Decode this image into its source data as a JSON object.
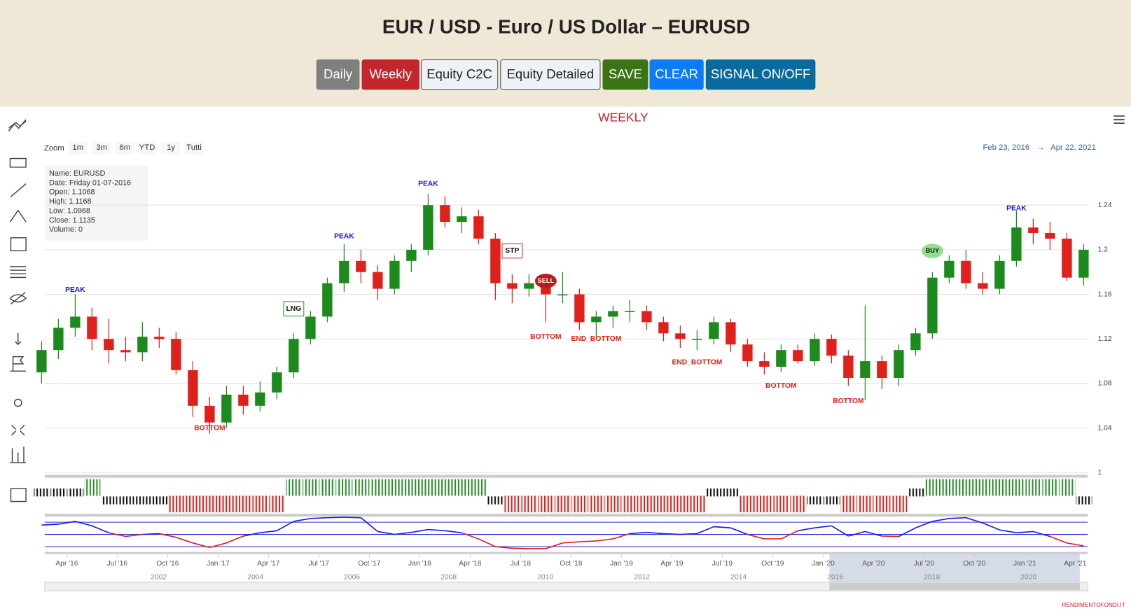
{
  "header": {
    "title": "EUR / USD - Euro / US Dollar – EURUSD",
    "buttons": [
      {
        "label": "Daily",
        "color": "#7f7f7f",
        "text_color": "#ffffff"
      },
      {
        "label": "Weekly",
        "color": "#c3262c",
        "text_color": "#ffffff"
      },
      {
        "label": "Equity C2C",
        "color": "#eef1f5",
        "text_color": "#222222"
      },
      {
        "label": "Equity Detailed",
        "color": "#eef1f5",
        "text_color": "#222222"
      },
      {
        "label": "SAVE",
        "color": "#3a7414",
        "text_color": "#ffffff"
      },
      {
        "label": "CLEAR",
        "color": "#0b7cf6",
        "text_color": "#ffffff"
      },
      {
        "label": "SIGNAL ON/OFF",
        "color": "#096a9d",
        "text_color": "#ffffff"
      }
    ]
  },
  "toolbar": {
    "zoom_label": "Zoom",
    "zoom_buttons": [
      "1m",
      "3m",
      "6m",
      "YTD",
      "1y",
      "Tutti"
    ],
    "range_from": "Feb 23, 2016",
    "range_arrow": "→",
    "range_to": "Apr 22, 2021"
  },
  "info_box": [
    "Name: EURUSD",
    "Date: Friday 01-07-2016",
    "Open: 1.1068",
    "High: 1.1168",
    "Low: 1.0968",
    "Close: 1.1135",
    "Volume: 0"
  ],
  "footer": "RENDIMENTOFONDI.IT",
  "chart_data": {
    "type": "candlestick",
    "title": "WEEKLY",
    "up_color": "#1d8a1d",
    "down_color": "#e0201b",
    "xlim": [
      "2016-02",
      "2021-05"
    ],
    "ylim": [
      1,
      1.278
    ],
    "yticks": [
      1,
      1.04,
      1.08,
      1.12,
      1.16,
      1.2,
      1.24
    ],
    "grid": true,
    "x": [
      "2016-02",
      "2016-03",
      "2016-04",
      "2016-05",
      "2016-06",
      "2016-07",
      "2016-08",
      "2016-09",
      "2016-10",
      "2016-11",
      "2016-12",
      "2017-01",
      "2017-02",
      "2017-03",
      "2017-04",
      "2017-05",
      "2017-06",
      "2017-07",
      "2017-08",
      "2017-09",
      "2017-10",
      "2017-11",
      "2017-12",
      "2018-01",
      "2018-02",
      "2018-03",
      "2018-04",
      "2018-05",
      "2018-06",
      "2018-07",
      "2018-08",
      "2018-09",
      "2018-10",
      "2018-11",
      "2018-12",
      "2019-01",
      "2019-02",
      "2019-03",
      "2019-04",
      "2019-05",
      "2019-06",
      "2019-07",
      "2019-08",
      "2019-09",
      "2019-10",
      "2019-11",
      "2019-12",
      "2020-01",
      "2020-02",
      "2020-03",
      "2020-04",
      "2020-05",
      "2020-06",
      "2020-07",
      "2020-08",
      "2020-09",
      "2020-10",
      "2020-11",
      "2020-12",
      "2021-01",
      "2021-02",
      "2021-03",
      "2021-04"
    ],
    "candles": [
      [
        1.09,
        1.118,
        1.08,
        1.11
      ],
      [
        1.11,
        1.138,
        1.102,
        1.13
      ],
      [
        1.13,
        1.16,
        1.122,
        1.14
      ],
      [
        1.14,
        1.148,
        1.11,
        1.12
      ],
      [
        1.12,
        1.138,
        1.098,
        1.11
      ],
      [
        1.11,
        1.122,
        1.1,
        1.108
      ],
      [
        1.108,
        1.135,
        1.1,
        1.122
      ],
      [
        1.122,
        1.13,
        1.112,
        1.12
      ],
      [
        1.12,
        1.126,
        1.088,
        1.092
      ],
      [
        1.092,
        1.1,
        1.05,
        1.06
      ],
      [
        1.06,
        1.068,
        1.035,
        1.045
      ],
      [
        1.045,
        1.078,
        1.04,
        1.07
      ],
      [
        1.07,
        1.078,
        1.052,
        1.06
      ],
      [
        1.06,
        1.082,
        1.055,
        1.072
      ],
      [
        1.072,
        1.095,
        1.066,
        1.09
      ],
      [
        1.09,
        1.125,
        1.085,
        1.12
      ],
      [
        1.12,
        1.145,
        1.115,
        1.14
      ],
      [
        1.14,
        1.175,
        1.135,
        1.17
      ],
      [
        1.17,
        1.205,
        1.162,
        1.19
      ],
      [
        1.19,
        1.2,
        1.17,
        1.18
      ],
      [
        1.18,
        1.186,
        1.155,
        1.165
      ],
      [
        1.165,
        1.195,
        1.16,
        1.19
      ],
      [
        1.19,
        1.205,
        1.18,
        1.2
      ],
      [
        1.2,
        1.25,
        1.195,
        1.24
      ],
      [
        1.24,
        1.248,
        1.22,
        1.225
      ],
      [
        1.225,
        1.238,
        1.215,
        1.23
      ],
      [
        1.23,
        1.236,
        1.205,
        1.21
      ],
      [
        1.21,
        1.215,
        1.155,
        1.17
      ],
      [
        1.17,
        1.178,
        1.152,
        1.165
      ],
      [
        1.165,
        1.178,
        1.158,
        1.17
      ],
      [
        1.17,
        1.175,
        1.135,
        1.16
      ],
      [
        1.16,
        1.18,
        1.152,
        1.16
      ],
      [
        1.16,
        1.165,
        1.128,
        1.135
      ],
      [
        1.135,
        1.145,
        1.122,
        1.14
      ],
      [
        1.14,
        1.15,
        1.13,
        1.145
      ],
      [
        1.145,
        1.155,
        1.135,
        1.145
      ],
      [
        1.145,
        1.15,
        1.128,
        1.135
      ],
      [
        1.135,
        1.14,
        1.118,
        1.125
      ],
      [
        1.125,
        1.132,
        1.112,
        1.12
      ],
      [
        1.12,
        1.128,
        1.11,
        1.12
      ],
      [
        1.12,
        1.14,
        1.115,
        1.135
      ],
      [
        1.135,
        1.138,
        1.108,
        1.115
      ],
      [
        1.115,
        1.12,
        1.095,
        1.1
      ],
      [
        1.1,
        1.108,
        1.088,
        1.095
      ],
      [
        1.095,
        1.115,
        1.09,
        1.11
      ],
      [
        1.11,
        1.115,
        1.098,
        1.1
      ],
      [
        1.1,
        1.125,
        1.096,
        1.12
      ],
      [
        1.12,
        1.124,
        1.098,
        1.105
      ],
      [
        1.105,
        1.11,
        1.078,
        1.085
      ],
      [
        1.085,
        1.15,
        1.065,
        1.1
      ],
      [
        1.1,
        1.105,
        1.075,
        1.085
      ],
      [
        1.085,
        1.115,
        1.078,
        1.11
      ],
      [
        1.11,
        1.13,
        1.105,
        1.125
      ],
      [
        1.125,
        1.18,
        1.12,
        1.175
      ],
      [
        1.175,
        1.195,
        1.17,
        1.19
      ],
      [
        1.19,
        1.2,
        1.165,
        1.17
      ],
      [
        1.17,
        1.18,
        1.16,
        1.165
      ],
      [
        1.165,
        1.195,
        1.16,
        1.19
      ],
      [
        1.19,
        1.235,
        1.185,
        1.22
      ],
      [
        1.22,
        1.228,
        1.205,
        1.215
      ],
      [
        1.215,
        1.225,
        1.2,
        1.21
      ],
      [
        1.21,
        1.215,
        1.172,
        1.175
      ],
      [
        1.175,
        1.205,
        1.168,
        1.2
      ]
    ],
    "xticks": [
      {
        "value": "2016-04",
        "label": "Apr '16"
      },
      {
        "value": "2016-07",
        "label": "Jul '16"
      },
      {
        "value": "2016-10",
        "label": "Oct '16"
      },
      {
        "value": "2017-01",
        "label": "Jan '17"
      },
      {
        "value": "2017-04",
        "label": "Apr '17"
      },
      {
        "value": "2017-07",
        "label": "Jul '17"
      },
      {
        "value": "2017-10",
        "label": "Oct '17"
      },
      {
        "value": "2018-01",
        "label": "Jan '18"
      },
      {
        "value": "2018-04",
        "label": "Apr '18"
      },
      {
        "value": "2018-07",
        "label": "Jul '18"
      },
      {
        "value": "2018-10",
        "label": "Oct '18"
      },
      {
        "value": "2019-01",
        "label": "Jan '19"
      },
      {
        "value": "2019-04",
        "label": "Apr '19"
      },
      {
        "value": "2019-07",
        "label": "Jul '19"
      },
      {
        "value": "2019-10",
        "label": "Oct '19"
      },
      {
        "value": "2020-01",
        "label": "Jan '20"
      },
      {
        "value": "2020-04",
        "label": "Apr '20"
      },
      {
        "value": "2020-07",
        "label": "Jul '20"
      },
      {
        "value": "2020-10",
        "label": "Oct '20"
      },
      {
        "value": "2021-01",
        "label": "Jan '21"
      },
      {
        "value": "2021-04",
        "label": "Apr '21"
      }
    ],
    "annotations": [
      {
        "label": "PEAK",
        "style": "peak",
        "x": "2016-04",
        "y": 1.164
      },
      {
        "label": "PEAK",
        "style": "peak",
        "x": "2017-08",
        "y": 1.212
      },
      {
        "label": "PEAK",
        "style": "peak",
        "x": "2018-01",
        "y": 1.259
      },
      {
        "label": "PEAK",
        "style": "peak",
        "x": "2020-12",
        "y": 1.237
      },
      {
        "label": "BOTTOM",
        "style": "bottom",
        "x": "2016-12",
        "y": 1.04
      },
      {
        "label": "BOTTOM",
        "style": "bottom",
        "x": "2018-08",
        "y": 1.122
      },
      {
        "label": "END_BOTTOM",
        "style": "bottom",
        "x": "2018-11",
        "y": 1.12
      },
      {
        "label": "END_BOTTOM",
        "style": "bottom",
        "x": "2019-05",
        "y": 1.099
      },
      {
        "label": "BOTTOM",
        "style": "bottom",
        "x": "2019-10",
        "y": 1.078
      },
      {
        "label": "BOTTOM",
        "style": "bottom",
        "x": "2020-02",
        "y": 1.064
      },
      {
        "label": "LNG",
        "style": "box-green",
        "x": "2017-05",
        "y": 1.147
      },
      {
        "label": "STP",
        "style": "box-red",
        "x": "2018-06",
        "y": 1.199
      },
      {
        "label": "SELL",
        "style": "badge-red",
        "x": "2018-08",
        "y": 1.172
      },
      {
        "label": "BUY",
        "style": "badge-green",
        "x": "2020-07",
        "y": 1.199
      }
    ],
    "signals": [
      1,
      1,
      1,
      2,
      -1,
      -1,
      -1,
      -1,
      -2,
      -2,
      -2,
      -2,
      -2,
      -2,
      -2,
      2,
      2,
      2,
      2,
      2,
      2,
      2,
      2,
      2,
      2,
      2,
      2,
      -1,
      -2,
      -2,
      -2,
      -2,
      -2,
      -2,
      -2,
      -2,
      -2,
      -2,
      -2,
      -2,
      1,
      1,
      -2,
      -2,
      -2,
      -2,
      -1,
      -1,
      -2,
      -2,
      -2,
      -2,
      1,
      2,
      2,
      2,
      2,
      2,
      2,
      2,
      2,
      2,
      -1
    ],
    "oscillator": {
      "ylim": [
        0,
        100
      ],
      "levels": [
        20,
        50,
        80
      ],
      "values": [
        73,
        75,
        82,
        71,
        54,
        45,
        50,
        52,
        43,
        29,
        18,
        29,
        46,
        54,
        59,
        82,
        89,
        91,
        92,
        91,
        57,
        50,
        55,
        62,
        59,
        54,
        39,
        20,
        16,
        15,
        15,
        29,
        32,
        34,
        39,
        52,
        55,
        52,
        50,
        52,
        69,
        66,
        50,
        39,
        39,
        59,
        66,
        71,
        46,
        57,
        46,
        45,
        66,
        82,
        89,
        91,
        78,
        61,
        54,
        57,
        45,
        29,
        22
      ]
    },
    "navigator_labels": [
      "2002",
      "2004",
      "2006",
      "2008",
      "2010",
      "2012",
      "2014",
      "2016",
      "2018",
      "2020"
    ]
  }
}
